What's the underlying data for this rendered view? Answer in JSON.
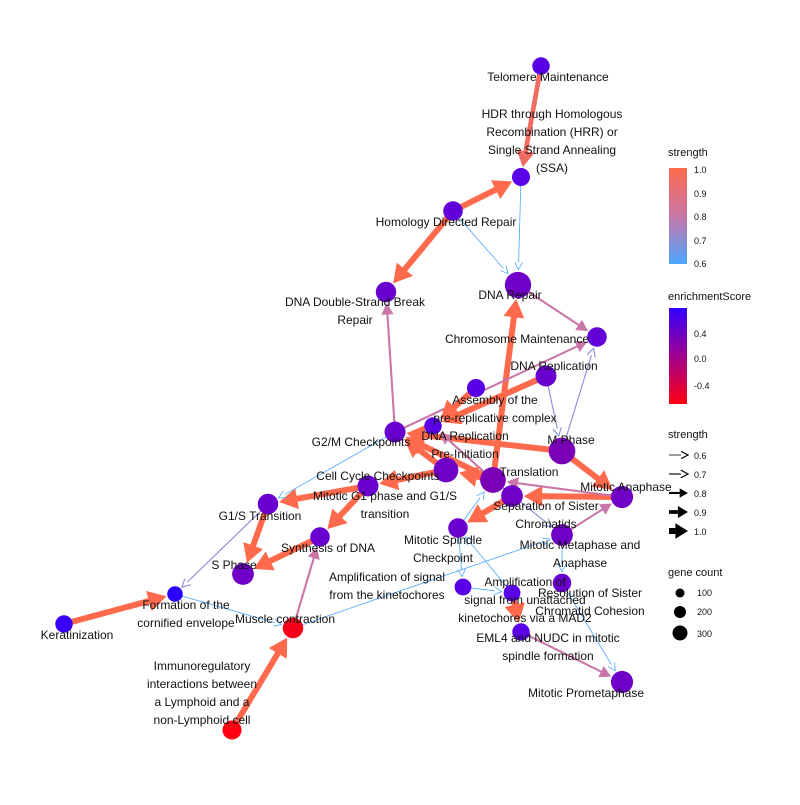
{
  "nodes": [
    {
      "id": "telomere",
      "label": [
        "Telomere Maintenance"
      ],
      "color": "#5a00e6",
      "size": 90
    },
    {
      "id": "hdr_hrr",
      "label": [
        "HDR through Homologous",
        "Recombination (HRR) or",
        "Single Strand Annealing",
        "(SSA)"
      ],
      "color": "#5a00e6",
      "size": 100
    },
    {
      "id": "hdr",
      "label": [
        "Homology Directed Repair"
      ],
      "color": "#6200d9",
      "size": 130
    },
    {
      "id": "dna_repair",
      "label": [
        "DNA Repair"
      ],
      "color": "#7000c8",
      "size": 310
    },
    {
      "id": "dsb_repair",
      "label": [
        "DNA Double-Strand Break",
        "Repair"
      ],
      "color": "#6a00d0",
      "size": 150
    },
    {
      "id": "chrom_maint",
      "label": [
        "Chromosome Maintenance"
      ],
      "color": "#6400d8",
      "size": 130
    },
    {
      "id": "dna_replication",
      "label": [
        "DNA Replication"
      ],
      "color": "#6a00d0",
      "size": 160
    },
    {
      "id": "prerep",
      "label": [
        "Assembly of the",
        "pre-replicative complex"
      ],
      "color": "#5a00e6",
      "size": 100
    },
    {
      "id": "g2m",
      "label": [
        "G2/M Checkpoints"
      ],
      "color": "#6a00d0",
      "size": 160
    },
    {
      "id": "dna_rep_preinit",
      "label": [
        "DNA Replication",
        "Pre-Initiation"
      ],
      "color": "#5a00e6",
      "size": 90
    },
    {
      "id": "m_phase",
      "label": [
        "M Phase"
      ],
      "color": "#7a00b8",
      "size": 320
    },
    {
      "id": "translation",
      "label": [
        "Translation"
      ],
      "color": "#7a00b8",
      "size": 290
    },
    {
      "id": "cc_checkpoints",
      "label": [
        "Cell Cycle Checkpoints"
      ],
      "color": "#7000c8",
      "size": 260
    },
    {
      "id": "mitotic_g1",
      "label": [
        "Mitotic G1 phase and G1/S",
        "transition"
      ],
      "color": "#6a00d0",
      "size": 160
    },
    {
      "id": "g1s",
      "label": [
        "G1/S Transition"
      ],
      "color": "#6a00d0",
      "size": 150
    },
    {
      "id": "mitotic_anaphase",
      "label": [
        "Mitotic Anaphase"
      ],
      "color": "#7000c8",
      "size": 190
    },
    {
      "id": "separation",
      "label": [
        "Separation of Sister",
        "Chromatids"
      ],
      "color": "#7000c8",
      "size": 180
    },
    {
      "id": "spindle_checkpoint",
      "label": [
        "Mitotic Spindle",
        "Checkpoint"
      ],
      "color": "#6a00d0",
      "size": 130
    },
    {
      "id": "synthesis_dna",
      "label": [
        "Synthesis of DNA"
      ],
      "color": "#6a00d0",
      "size": 130
    },
    {
      "id": "metaphase_anaphase",
      "label": [
        "Mitotic Metaphase and",
        "Anaphase"
      ],
      "color": "#7000c8",
      "size": 180
    },
    {
      "id": "s_phase",
      "label": [
        "S Phase"
      ],
      "color": "#7000c8",
      "size": 180
    },
    {
      "id": "amplification",
      "label": [
        "Amplification of signal",
        "from the kinetochores"
      ],
      "color": "#5a00e6",
      "size": 80
    },
    {
      "id": "amp_unattached",
      "label": [
        "Amplification of",
        "signal from unattached",
        "kinetochores via a MAD2"
      ],
      "color": "#5a00e6",
      "size": 80
    },
    {
      "id": "resolution",
      "label": [
        "Resolution of Sister",
        "Chromatid Cohesion"
      ],
      "color": "#6a00d0",
      "size": 110
    },
    {
      "id": "cornified",
      "label": [
        "Formation of the",
        "cornified envelope"
      ],
      "color": "#2a00ff",
      "size": 60
    },
    {
      "id": "keratinization",
      "label": [
        "Keratinization"
      ],
      "color": "#3a00f5",
      "size": 90
    },
    {
      "id": "muscle",
      "label": [
        "Muscle contraction"
      ],
      "color": "#f50018",
      "size": 150
    },
    {
      "id": "eml4",
      "label": [
        "EML4 and NUDC in mitotic",
        "spindle formation"
      ],
      "color": "#5a00e6",
      "size": 90
    },
    {
      "id": "prometaphase",
      "label": [
        "Mitotic Prometaphase"
      ],
      "color": "#7000c8",
      "size": 190
    },
    {
      "id": "immuno",
      "label": [
        "Immunoregulatory",
        "interactions between",
        "a Lymphoid and a",
        "non-Lymphoid cell"
      ],
      "color": "#ff0010",
      "size": 120
    }
  ],
  "edges": [
    {
      "from": "telomere",
      "to": "hdr_hrr",
      "strength": 0.95
    },
    {
      "from": "hdr",
      "to": "hdr_hrr",
      "strength": 1.0
    },
    {
      "from": "hdr",
      "to": "dsb_repair",
      "strength": 1.0
    },
    {
      "from": "hdr_hrr",
      "to": "dna_repair",
      "strength": 0.6
    },
    {
      "from": "hdr",
      "to": "dna_repair",
      "strength": 0.6
    },
    {
      "from": "dna_repair",
      "to": "chrom_maint",
      "strength": 0.8
    },
    {
      "from": "g2m",
      "to": "dsb_repair",
      "strength": 0.8
    },
    {
      "from": "translation",
      "to": "dna_repair",
      "strength": 1.0
    },
    {
      "from": "g2m",
      "to": "chrom_maint",
      "strength": 0.8
    },
    {
      "from": "dna_replication",
      "to": "m_phase",
      "strength": 0.7
    },
    {
      "from": "m_phase",
      "to": "chrom_maint",
      "strength": 0.7
    },
    {
      "from": "dna_replication",
      "to": "dna_rep_preinit",
      "strength": 1.0
    },
    {
      "from": "prerep",
      "to": "dna_rep_preinit",
      "strength": 1.0
    },
    {
      "from": "cc_checkpoints",
      "to": "g2m",
      "strength": 1.0
    },
    {
      "from": "translation",
      "to": "g2m",
      "strength": 1.0
    },
    {
      "from": "m_phase",
      "to": "g2m",
      "strength": 1.0
    },
    {
      "from": "translation",
      "to": "dna_rep_preinit",
      "strength": 0.8
    },
    {
      "from": "m_phase",
      "to": "mitotic_anaphase",
      "strength": 1.0
    },
    {
      "from": "mitotic_g1",
      "to": "g1s",
      "strength": 1.0
    },
    {
      "from": "g2m",
      "to": "g1s",
      "strength": 0.6
    },
    {
      "from": "cc_checkpoints",
      "to": "mitotic_g1",
      "strength": 1.0
    },
    {
      "from": "translation",
      "to": "cc_checkpoints",
      "strength": 1.0
    },
    {
      "from": "mitotic_anaphase",
      "to": "separation",
      "strength": 1.0
    },
    {
      "from": "separation",
      "to": "spindle_checkpoint",
      "strength": 1.0
    },
    {
      "from": "mitotic_anaphase",
      "to": "translation",
      "strength": 0.8
    },
    {
      "from": "separation",
      "to": "translation",
      "strength": 0.8
    },
    {
      "from": "g1s",
      "to": "s_phase",
      "strength": 1.0
    },
    {
      "from": "mitotic_g1",
      "to": "synthesis_dna",
      "strength": 1.0
    },
    {
      "from": "synthesis_dna",
      "to": "s_phase",
      "strength": 1.0
    },
    {
      "from": "g1s",
      "to": "cornified",
      "strength": 0.7
    },
    {
      "from": "keratinization",
      "to": "cornified",
      "strength": 1.0
    },
    {
      "from": "immuno",
      "to": "muscle",
      "strength": 1.0
    },
    {
      "from": "muscle",
      "to": "synthesis_dna",
      "strength": 0.8
    },
    {
      "from": "cornified",
      "to": "muscle",
      "strength": 0.6
    },
    {
      "from": "muscle",
      "to": "metaphase_anaphase",
      "strength": 0.6
    },
    {
      "from": "spindle_checkpoint",
      "to": "translation",
      "strength": 0.6
    },
    {
      "from": "amp_unattached",
      "to": "spindle_checkpoint",
      "strength": 0.6
    },
    {
      "from": "amp_unattached",
      "to": "eml4",
      "strength": 1.0
    },
    {
      "from": "eml4",
      "to": "prometaphase",
      "strength": 0.8
    },
    {
      "from": "metaphase_anaphase",
      "to": "resolution",
      "strength": 0.6
    },
    {
      "from": "resolution",
      "to": "prometaphase",
      "strength": 0.6
    },
    {
      "from": "amplification",
      "to": "amp_unattached",
      "strength": 0.6
    },
    {
      "from": "metaphase_anaphase",
      "to": "mitotic_anaphase",
      "strength": 0.8
    },
    {
      "from": "translation",
      "to": "separation",
      "strength": 0.8
    },
    {
      "from": "spindle_checkpoint",
      "to": "amplification",
      "strength": 0.6
    },
    {
      "from": "translation",
      "to": "metaphase_anaphase",
      "strength": 0.7
    }
  ],
  "legend": {
    "strength_color": {
      "title": "strength",
      "ticks": [
        "1.0",
        "0.9",
        "0.8",
        "0.7",
        "0.6"
      ]
    },
    "enrichment": {
      "title": "enrichmentScore",
      "ticks": [
        "0.4",
        "0.0",
        "-0.4"
      ]
    },
    "strength_width": {
      "title": "strength",
      "ticks": [
        "0.6",
        "0.7",
        "0.8",
        "0.9",
        "1.0"
      ]
    },
    "gene_count": {
      "title": "gene count",
      "ticks": [
        "100",
        "200",
        "300"
      ]
    }
  }
}
